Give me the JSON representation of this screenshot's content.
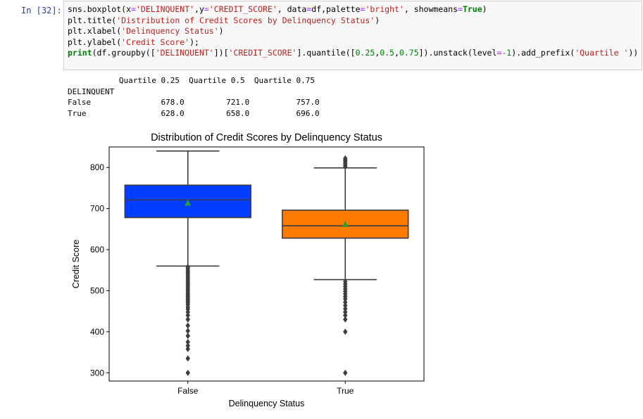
{
  "cell": {
    "prompt": "In [32]:",
    "code_lines": [
      [
        {
          "t": "sns.boxplot(x",
          "c": "c-fn"
        },
        {
          "t": "=",
          "c": "c-op"
        },
        {
          "t": "'DELINQUENT'",
          "c": "c-str"
        },
        {
          "t": ",y",
          "c": "c-fn"
        },
        {
          "t": "=",
          "c": "c-op"
        },
        {
          "t": "'CREDIT_SCORE'",
          "c": "c-str"
        },
        {
          "t": ", data",
          "c": "c-fn"
        },
        {
          "t": "=",
          "c": "c-op"
        },
        {
          "t": "df,palette",
          "c": "c-fn"
        },
        {
          "t": "=",
          "c": "c-op"
        },
        {
          "t": "'bright'",
          "c": "c-str"
        },
        {
          "t": ", showmeans",
          "c": "c-fn"
        },
        {
          "t": "=",
          "c": "c-op"
        },
        {
          "t": "True",
          "c": "c-kw"
        },
        {
          "t": ")",
          "c": "c-fn"
        }
      ],
      [
        {
          "t": "plt.title(",
          "c": "c-fn"
        },
        {
          "t": "'Distribution of Credit Scores by Delinquency Status'",
          "c": "c-str"
        },
        {
          "t": ")",
          "c": "c-fn"
        }
      ],
      [
        {
          "t": "plt.xlabel(",
          "c": "c-fn"
        },
        {
          "t": "'Delinquency Status'",
          "c": "c-str"
        },
        {
          "t": ")",
          "c": "c-fn"
        }
      ],
      [
        {
          "t": "plt.ylabel(",
          "c": "c-fn"
        },
        {
          "t": "'Credit Score'",
          "c": "c-str"
        },
        {
          "t": ");",
          "c": "c-fn"
        }
      ],
      [
        {
          "t": "print",
          "c": "c-kw"
        },
        {
          "t": "(df.groupby([",
          "c": "c-fn"
        },
        {
          "t": "'DELINQUENT'",
          "c": "c-str"
        },
        {
          "t": "])[",
          "c": "c-fn"
        },
        {
          "t": "'CREDIT_SCORE'",
          "c": "c-str"
        },
        {
          "t": "].quantile([",
          "c": "c-fn"
        },
        {
          "t": "0.25",
          "c": "c-num"
        },
        {
          "t": ",",
          "c": "c-fn"
        },
        {
          "t": "0.5",
          "c": "c-num"
        },
        {
          "t": ",",
          "c": "c-fn"
        },
        {
          "t": "0.75",
          "c": "c-num"
        },
        {
          "t": "]).unstack(level",
          "c": "c-fn"
        },
        {
          "t": "=-",
          "c": "c-op"
        },
        {
          "t": "1",
          "c": "c-num"
        },
        {
          "t": ").add_prefix(",
          "c": "c-fn"
        },
        {
          "t": "'Quartile '",
          "c": "c-str"
        },
        {
          "t": "))",
          "c": "c-fn"
        }
      ]
    ]
  },
  "output_table": {
    "header": "           Quartile 0.25  Quartile 0.5  Quartile 0.75",
    "index_name": "DELINQUENT",
    "rows": [
      "False               678.0         721.0          757.0",
      "True                628.0         658.0          696.0"
    ]
  },
  "chart_data": {
    "type": "box",
    "title": "Distribution of Credit Scores by Delinquency Status",
    "xlabel": "Delinquency Status",
    "ylabel": "Credit Score",
    "ylim": [
      280,
      850
    ],
    "yticks": [
      300,
      400,
      500,
      600,
      700,
      800
    ],
    "categories": [
      "False",
      "True"
    ],
    "boxes": [
      {
        "name": "False",
        "color": "#023eff",
        "q1": 678,
        "median": 721,
        "q3": 757,
        "mean": 713,
        "whisker_low": 560,
        "whisker_high": 840,
        "outliers": [
          300,
          335,
          358,
          366,
          375,
          390,
          402,
          415,
          430,
          440,
          448,
          455,
          460,
          466,
          470,
          474,
          478,
          482,
          486,
          490,
          494,
          498,
          502,
          506,
          510,
          514,
          518,
          522,
          526,
          530,
          534,
          538,
          542,
          546,
          550,
          554,
          558
        ]
      },
      {
        "name": "True",
        "color": "#ff7c00",
        "q1": 628,
        "median": 658,
        "q3": 696,
        "mean": 661,
        "whisker_low": 527,
        "whisker_high": 799,
        "outliers": [
          300,
          400,
          430,
          440,
          448,
          456,
          464,
          472,
          480,
          486,
          492,
          498,
          504,
          510,
          516,
          522,
          802,
          806,
          810,
          814,
          818,
          822
        ]
      }
    ],
    "mean_color": "#2ca02c"
  }
}
